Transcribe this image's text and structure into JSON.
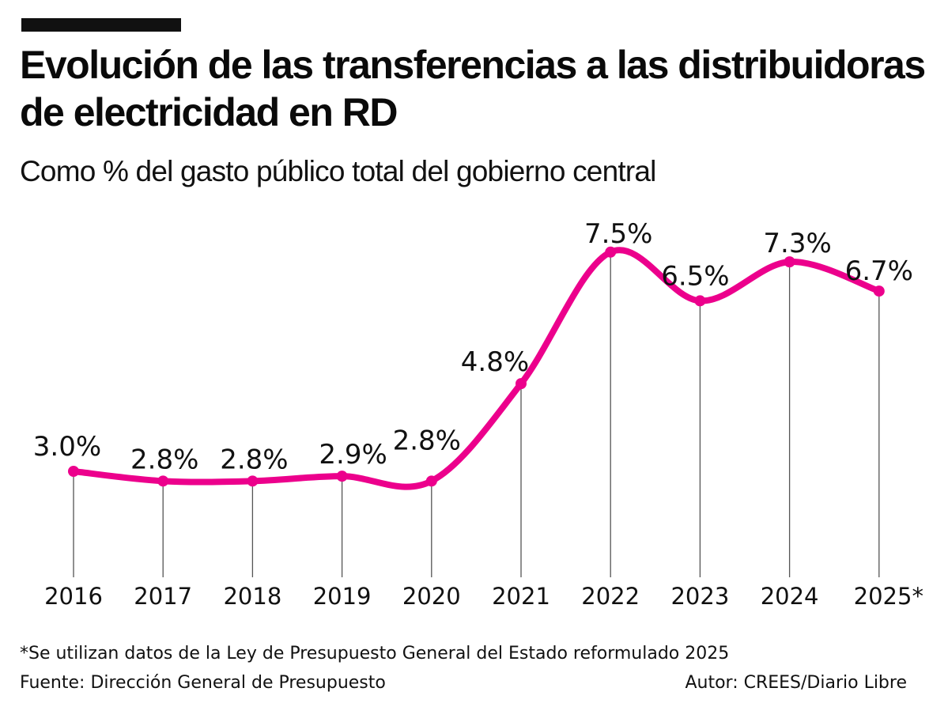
{
  "title": "Evolución de las transferencias a las distribuidoras de electricidad en RD",
  "subtitle": "Como % del gasto público total del gobierno central",
  "footnote": "*Se utilizan datos de la Ley de Presupuesto General del Estado reformulado 2025",
  "source": "Fuente: Dirección General de Presupuesto",
  "author": "Autor:  CREES/Diario Libre",
  "colors": {
    "line": "#EC008C",
    "text": "#111111"
  },
  "chart_data": {
    "type": "line",
    "title": "Evolución de las transferencias a las distribuidoras de electricidad en RD",
    "subtitle": "Como % del gasto público total del gobierno central",
    "categories": [
      "2016",
      "2017",
      "2018",
      "2019",
      "2020",
      "2021",
      "2022",
      "2023",
      "2024",
      "2025*"
    ],
    "values": [
      3.0,
      2.8,
      2.8,
      2.9,
      2.8,
      4.8,
      7.5,
      6.5,
      7.3,
      6.7
    ],
    "labels": [
      "3.0%",
      "2.8%",
      "2.8%",
      "2.9%",
      "2.8%",
      "4.8%",
      "7.5%",
      "6.5%",
      "7.3%",
      "6.7%"
    ],
    "xlabel": "",
    "ylabel": "",
    "grid": false,
    "legend": "none",
    "smooth": true
  }
}
